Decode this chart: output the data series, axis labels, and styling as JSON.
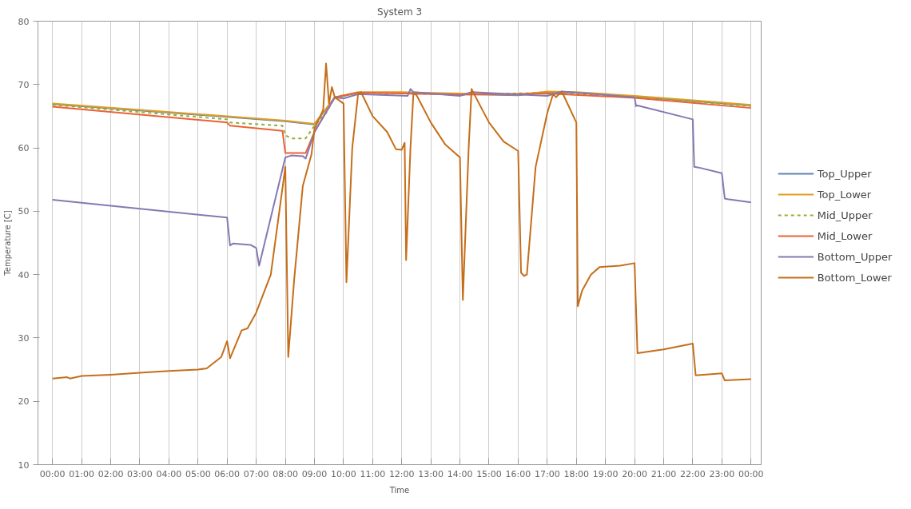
{
  "chart_data": {
    "type": "line",
    "title": "System 3",
    "xlabel": "Time",
    "ylabel": "Temperature [C]",
    "xlim": [
      -0.5,
      24.35
    ],
    "ylim": [
      10,
      80
    ],
    "xticks": [
      {
        "value": 0,
        "label": "00:00"
      },
      {
        "value": 1,
        "label": "01:00"
      },
      {
        "value": 2,
        "label": "02:00"
      },
      {
        "value": 3,
        "label": "03:00"
      },
      {
        "value": 4,
        "label": "04:00"
      },
      {
        "value": 5,
        "label": "05:00"
      },
      {
        "value": 6,
        "label": "06:00"
      },
      {
        "value": 7,
        "label": "07:00"
      },
      {
        "value": 8,
        "label": "08:00"
      },
      {
        "value": 9,
        "label": "09:00"
      },
      {
        "value": 10,
        "label": "10:00"
      },
      {
        "value": 11,
        "label": "11:00"
      },
      {
        "value": 12,
        "label": "12:00"
      },
      {
        "value": 13,
        "label": "13:00"
      },
      {
        "value": 14,
        "label": "14:00"
      },
      {
        "value": 15,
        "label": "15:00"
      },
      {
        "value": 16,
        "label": "16:00"
      },
      {
        "value": 17,
        "label": "17:00"
      },
      {
        "value": 18,
        "label": "18:00"
      },
      {
        "value": 19,
        "label": "19:00"
      },
      {
        "value": 20,
        "label": "20:00"
      },
      {
        "value": 21,
        "label": "21:00"
      },
      {
        "value": 22,
        "label": "22:00"
      },
      {
        "value": 23,
        "label": "23:00"
      },
      {
        "value": 24,
        "label": "00:00"
      }
    ],
    "yticks": [
      10,
      20,
      30,
      40,
      50,
      60,
      70,
      80
    ],
    "grid": "x",
    "legend": "right",
    "marker": "none",
    "series": [
      {
        "name": "Top_Upper",
        "color": "#5e81b5",
        "x": [
          0,
          3,
          6,
          8,
          9,
          9.7,
          10.5,
          12,
          14,
          16,
          17,
          18,
          20,
          22,
          24
        ],
        "values": [
          66.9,
          65.9,
          64.9,
          64.2,
          63.7,
          67.9,
          68.7,
          68.7,
          68.5,
          68.3,
          68.8,
          68.7,
          68.1,
          67.4,
          66.7
        ]
      },
      {
        "name": "Top_Lower",
        "color": "#e19c24",
        "x": [
          0,
          3,
          6,
          8,
          9,
          9.7,
          10.5,
          12,
          14,
          16,
          17,
          18,
          20,
          22,
          24
        ],
        "values": [
          67,
          66,
          65,
          64.3,
          63.8,
          68,
          68.8,
          68.8,
          68.6,
          68.4,
          68.9,
          68.8,
          68.2,
          67.5,
          66.8
        ]
      },
      {
        "name": "Mid_Upper",
        "color": "#8fb032",
        "line_style": "dashed",
        "x": [
          0,
          6,
          6.1,
          7.9,
          8,
          8.2,
          8.7,
          9,
          9.4,
          9.7,
          10.5,
          12,
          14,
          17,
          20,
          24
        ],
        "values": [
          66.8,
          64.5,
          64,
          63.5,
          62,
          61.5,
          61.5,
          63.5,
          65.5,
          68,
          68.7,
          68.6,
          68.4,
          68.7,
          68,
          66.6
        ]
      },
      {
        "name": "Mid_Lower",
        "color": "#eb6235",
        "x": [
          0,
          6,
          6.1,
          7.9,
          8,
          8.7,
          9,
          9.7,
          10.5,
          12,
          14,
          17,
          20,
          24
        ],
        "values": [
          66.5,
          64,
          63.5,
          62.7,
          59.2,
          59.2,
          62.5,
          68,
          68.7,
          68.6,
          68.4,
          68.6,
          67.9,
          66.3
        ]
      },
      {
        "name": "Bottom_Upper",
        "color": "#8778b3",
        "x": [
          0,
          6,
          6.1,
          6.2,
          6.8,
          7,
          7.1,
          8,
          8.2,
          8.6,
          8.7,
          9,
          9.7,
          10,
          10.5,
          12.2,
          12.3,
          12.4,
          14,
          14.4,
          17,
          17.5,
          20,
          20.05,
          20.1,
          22,
          22.05,
          22.2,
          23,
          23.1,
          23.2,
          24
        ],
        "values": [
          51.8,
          49,
          44.6,
          44.9,
          44.7,
          44.2,
          41.4,
          58.5,
          58.8,
          58.7,
          58.3,
          62.5,
          68,
          67.8,
          68.5,
          68.2,
          69.3,
          68.8,
          68.2,
          68.8,
          68.2,
          68.9,
          68,
          66.6,
          66.7,
          64.5,
          57,
          56.9,
          56,
          52,
          51.9,
          51.4
        ]
      },
      {
        "name": "Bottom_Lower",
        "color": "#c56e1a",
        "x": [
          0,
          0.5,
          0.6,
          1,
          2,
          3,
          4,
          5,
          5.3,
          5.8,
          6,
          6.1,
          6.3,
          6.5,
          6.7,
          7,
          7.5,
          8,
          8.1,
          8.3,
          8.6,
          8.9,
          9,
          9.3,
          9.4,
          9.5,
          9.6,
          9.7,
          10,
          10.1,
          10.3,
          10.5,
          10.6,
          11,
          11.5,
          11.8,
          12,
          12.1,
          12.15,
          12.3,
          12.4,
          12.5,
          13,
          13.5,
          14,
          14.1,
          14.3,
          14.4,
          14.6,
          15,
          15.5,
          16,
          16.1,
          16.2,
          16.3,
          16.6,
          17,
          17.2,
          17.3,
          17.5,
          18,
          18.05,
          18.2,
          18.5,
          18.8,
          19.5,
          20,
          20.1,
          21,
          22,
          22.1,
          23,
          23.1,
          24
        ],
        "values": [
          23.6,
          23.8,
          23.6,
          24,
          24.2,
          24.5,
          24.8,
          25,
          25.2,
          27,
          29.5,
          26.8,
          29,
          31.2,
          31.5,
          34,
          40,
          57,
          27,
          39,
          54,
          59,
          63,
          66,
          73.3,
          67,
          69.6,
          68,
          67,
          38.8,
          60,
          68.5,
          68.8,
          65,
          62.5,
          59.8,
          59.7,
          60.8,
          42.3,
          60,
          68.5,
          68.4,
          64,
          60.5,
          58.5,
          36,
          60,
          69.3,
          67.5,
          64,
          61,
          59.5,
          40.3,
          39.8,
          40,
          57,
          65.5,
          68.5,
          68,
          68.9,
          64,
          35,
          37.5,
          40,
          41.2,
          41.4,
          41.8,
          27.6,
          28.2,
          29.1,
          24.1,
          24.4,
          23.3,
          23.5
        ]
      }
    ]
  }
}
